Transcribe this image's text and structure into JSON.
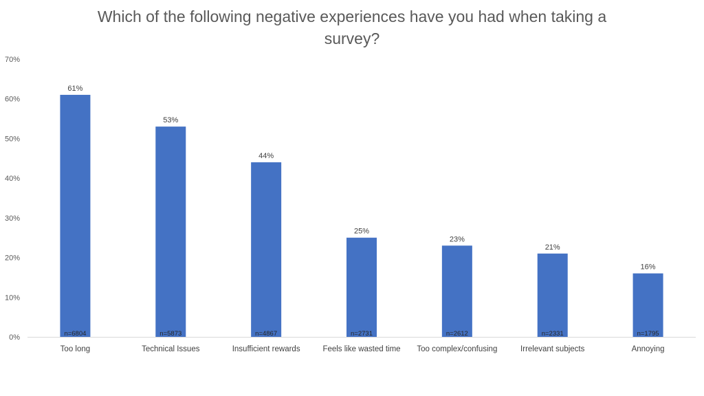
{
  "chart_data": {
    "type": "bar",
    "title": "Which of the following negative experiences have you had when taking a survey?",
    "xlabel": "",
    "ylabel": "",
    "ylim": [
      0,
      70
    ],
    "y_ticks": [
      "0%",
      "10%",
      "20%",
      "30%",
      "40%",
      "50%",
      "60%",
      "70%"
    ],
    "y_tick_values": [
      0,
      10,
      20,
      30,
      40,
      50,
      60,
      70
    ],
    "categories": [
      "Too long",
      "Technical Issues",
      "Insufficient rewards",
      "Feels like wasted time",
      "Too complex/confusing",
      "Irrelevant subjects",
      "Annoying"
    ],
    "values": [
      61,
      53,
      44,
      25,
      23,
      21,
      16
    ],
    "value_labels": [
      "61%",
      "53%",
      "44%",
      "25%",
      "23%",
      "21%",
      "16%"
    ],
    "n_labels": [
      "n=6804",
      "n=5873",
      "n=4867",
      "n=2731",
      "n=2612",
      "n=2331",
      "n=1795"
    ],
    "bar_color": "#4472C4",
    "axis_color": "#D9D9D9",
    "grid": false,
    "legend": "none"
  }
}
